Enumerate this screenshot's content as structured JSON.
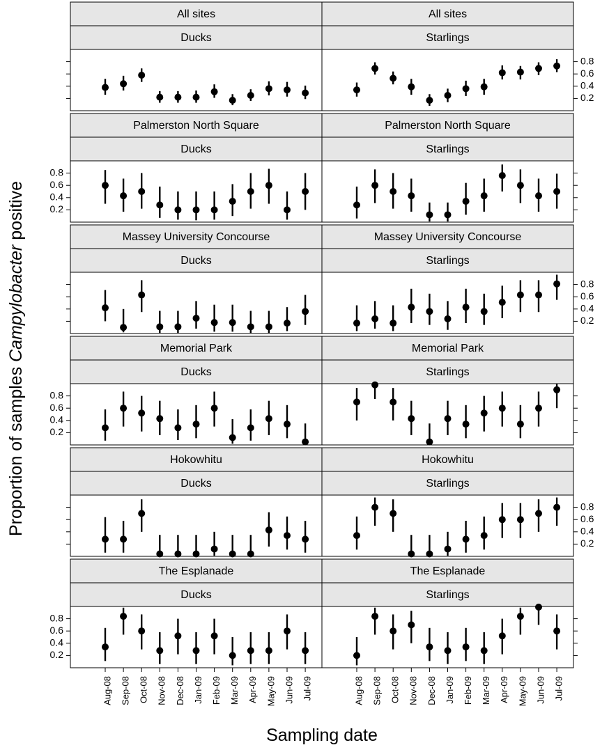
{
  "chart_data": {
    "type": "scatter",
    "xlabel": "Sampling date",
    "ylabel_prefix": "Proportion of samples ",
    "ylabel_italic": "Campylobacter",
    "ylabel_suffix": " positive",
    "categories": [
      "Aug-08",
      "Sep-08",
      "Oct-08",
      "Nov-08",
      "Dec-08",
      "Jan-09",
      "Feb-09",
      "Mar-09",
      "Apr-09",
      "May-09",
      "Jun-09",
      "Jul-09"
    ],
    "yticks": [
      "0.2",
      "0.4",
      "0.6",
      "0.8"
    ],
    "ylim": [
      0,
      1
    ],
    "columns": [
      "Ducks",
      "Starlings"
    ],
    "sites": [
      "All sites",
      "Palmerston North Square",
      "Massey University Concourse",
      "Memorial Park",
      "Hokowhitu",
      "The Esplanade"
    ],
    "panels": [
      {
        "site": "All sites",
        "bird": "Ducks",
        "values": [
          0.38,
          0.44,
          0.58,
          0.22,
          0.22,
          0.22,
          0.31,
          0.17,
          0.25,
          0.36,
          0.34,
          0.29
        ],
        "lower": [
          0.26,
          0.33,
          0.47,
          0.13,
          0.13,
          0.13,
          0.21,
          0.09,
          0.16,
          0.25,
          0.23,
          0.19
        ],
        "upper": [
          0.52,
          0.57,
          0.69,
          0.32,
          0.32,
          0.33,
          0.43,
          0.27,
          0.35,
          0.48,
          0.47,
          0.41
        ]
      },
      {
        "site": "All sites",
        "bird": "Starlings",
        "values": [
          0.34,
          0.69,
          0.53,
          0.39,
          0.17,
          0.25,
          0.36,
          0.39,
          0.62,
          0.63,
          0.69,
          0.73
        ],
        "lower": [
          0.23,
          0.59,
          0.43,
          0.26,
          0.08,
          0.14,
          0.24,
          0.26,
          0.51,
          0.51,
          0.58,
          0.63
        ],
        "upper": [
          0.46,
          0.79,
          0.64,
          0.52,
          0.27,
          0.36,
          0.49,
          0.52,
          0.74,
          0.73,
          0.79,
          0.84
        ]
      },
      {
        "site": "Palmerston North Square",
        "bird": "Ducks",
        "values": [
          0.6,
          0.43,
          0.5,
          0.28,
          0.2,
          0.2,
          0.2,
          0.34,
          0.5,
          0.6,
          0.2,
          0.5
        ],
        "lower": [
          0.3,
          0.17,
          0.22,
          0.07,
          0.04,
          0.03,
          0.04,
          0.1,
          0.22,
          0.3,
          0.04,
          0.2
        ],
        "upper": [
          0.85,
          0.71,
          0.8,
          0.58,
          0.5,
          0.5,
          0.5,
          0.62,
          0.8,
          0.87,
          0.5,
          0.8
        ]
      },
      {
        "site": "Palmerston North Square",
        "bird": "Starlings",
        "values": [
          0.28,
          0.6,
          0.5,
          0.43,
          0.12,
          0.12,
          0.34,
          0.43,
          0.76,
          0.6,
          0.43,
          0.5
        ],
        "lower": [
          0.06,
          0.31,
          0.22,
          0.17,
          0.01,
          0.01,
          0.12,
          0.17,
          0.5,
          0.31,
          0.17,
          0.22
        ],
        "upper": [
          0.58,
          0.86,
          0.8,
          0.71,
          0.32,
          0.32,
          0.64,
          0.71,
          0.94,
          0.86,
          0.71,
          0.79
        ]
      },
      {
        "site": "Massey University Concourse",
        "bird": "Ducks",
        "values": [
          0.42,
          0.1,
          0.63,
          0.11,
          0.11,
          0.25,
          0.18,
          0.18,
          0.11,
          0.11,
          0.17,
          0.36
        ],
        "lower": [
          0.2,
          0.02,
          0.35,
          0.01,
          0.01,
          0.08,
          0.03,
          0.03,
          0.01,
          0.01,
          0.04,
          0.14
        ],
        "upper": [
          0.71,
          0.4,
          0.87,
          0.37,
          0.37,
          0.53,
          0.47,
          0.47,
          0.37,
          0.37,
          0.43,
          0.63
        ]
      },
      {
        "site": "Massey University Concourse",
        "bird": "Starlings",
        "values": [
          0.17,
          0.24,
          0.17,
          0.43,
          0.36,
          0.24,
          0.43,
          0.36,
          0.51,
          0.63,
          0.63,
          0.81
        ],
        "lower": [
          0.04,
          0.08,
          0.04,
          0.17,
          0.14,
          0.06,
          0.17,
          0.14,
          0.25,
          0.35,
          0.35,
          0.55
        ],
        "upper": [
          0.46,
          0.53,
          0.46,
          0.73,
          0.65,
          0.53,
          0.73,
          0.65,
          0.78,
          0.87,
          0.87,
          0.96
        ]
      },
      {
        "site": "Memorial Park",
        "bird": "Ducks",
        "values": [
          0.28,
          0.6,
          0.52,
          0.43,
          0.28,
          0.34,
          0.6,
          0.12,
          0.28,
          0.43,
          0.34,
          0.05
        ],
        "lower": [
          0.07,
          0.3,
          0.22,
          0.16,
          0.08,
          0.11,
          0.3,
          0.02,
          0.07,
          0.16,
          0.11,
          0.0
        ],
        "upper": [
          0.58,
          0.87,
          0.8,
          0.72,
          0.58,
          0.65,
          0.87,
          0.42,
          0.58,
          0.72,
          0.65,
          0.35
        ]
      },
      {
        "site": "Memorial Park",
        "bird": "Starlings",
        "values": [
          0.7,
          0.98,
          0.7,
          0.43,
          0.05,
          0.43,
          0.34,
          0.52,
          0.6,
          0.34,
          0.6,
          0.9
        ],
        "lower": [
          0.4,
          0.75,
          0.4,
          0.16,
          0.0,
          0.16,
          0.11,
          0.22,
          0.3,
          0.11,
          0.3,
          0.6
        ],
        "upper": [
          0.93,
          1.0,
          0.93,
          0.72,
          0.35,
          0.72,
          0.65,
          0.8,
          0.87,
          0.65,
          0.87,
          1.0
        ]
      },
      {
        "site": "Hokowhitu",
        "bird": "Ducks",
        "values": [
          0.28,
          0.28,
          0.7,
          0.04,
          0.04,
          0.04,
          0.12,
          0.04,
          0.04,
          0.43,
          0.34,
          0.28
        ],
        "lower": [
          0.06,
          0.06,
          0.4,
          0.0,
          0.0,
          0.0,
          0.01,
          0.0,
          0.0,
          0.16,
          0.11,
          0.06
        ],
        "upper": [
          0.64,
          0.58,
          0.93,
          0.35,
          0.35,
          0.35,
          0.4,
          0.35,
          0.35,
          0.72,
          0.65,
          0.58
        ]
      },
      {
        "site": "Hokowhitu",
        "bird": "Starlings",
        "values": [
          0.34,
          0.8,
          0.7,
          0.04,
          0.04,
          0.12,
          0.28,
          0.34,
          0.6,
          0.6,
          0.7,
          0.8
        ],
        "lower": [
          0.11,
          0.5,
          0.4,
          0.0,
          0.0,
          0.01,
          0.06,
          0.11,
          0.3,
          0.3,
          0.4,
          0.5
        ],
        "upper": [
          0.65,
          0.96,
          0.93,
          0.35,
          0.35,
          0.4,
          0.58,
          0.65,
          0.87,
          0.87,
          0.93,
          0.96
        ]
      },
      {
        "site": "The Esplanade",
        "bird": "Ducks",
        "values": [
          0.34,
          0.84,
          0.6,
          0.28,
          0.52,
          0.28,
          0.52,
          0.2,
          0.28,
          0.28,
          0.6,
          0.28
        ],
        "lower": [
          0.11,
          0.54,
          0.3,
          0.06,
          0.22,
          0.06,
          0.22,
          0.04,
          0.06,
          0.06,
          0.3,
          0.06
        ],
        "upper": [
          0.65,
          0.98,
          0.87,
          0.58,
          0.8,
          0.58,
          0.8,
          0.5,
          0.58,
          0.58,
          0.87,
          0.58
        ]
      },
      {
        "site": "The Esplanade",
        "bird": "Starlings",
        "values": [
          0.2,
          0.84,
          0.6,
          0.7,
          0.34,
          0.28,
          0.34,
          0.28,
          0.52,
          0.84,
          0.99,
          0.6
        ],
        "lower": [
          0.04,
          0.54,
          0.3,
          0.4,
          0.11,
          0.06,
          0.11,
          0.06,
          0.22,
          0.54,
          0.7,
          0.3
        ],
        "upper": [
          0.5,
          0.98,
          0.87,
          0.93,
          0.65,
          0.58,
          0.65,
          0.58,
          0.8,
          0.98,
          1.0,
          0.87
        ]
      }
    ]
  }
}
